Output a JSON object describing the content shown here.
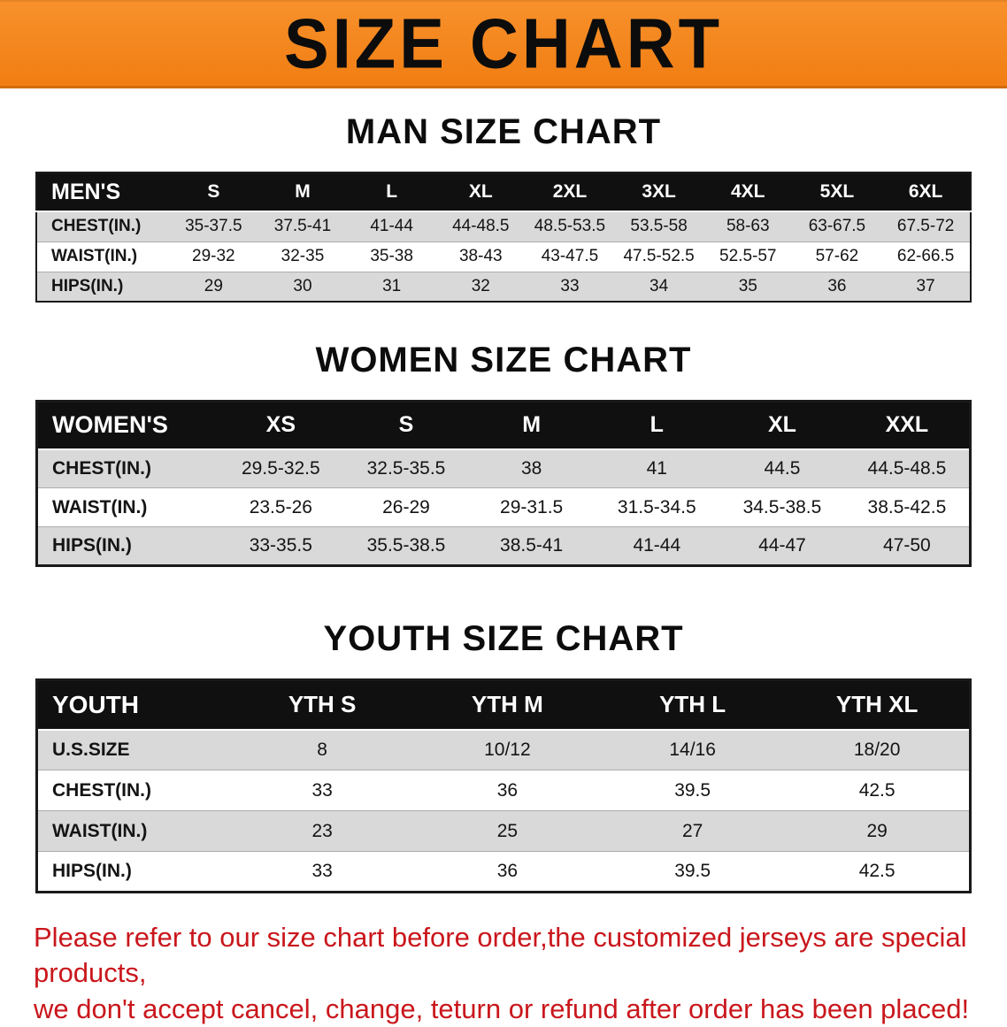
{
  "banner": {
    "title": "SIZE CHART"
  },
  "colors": {
    "banner_orange": "#F6861E",
    "table_header_bg": "#101010",
    "row_stripe": "#D9D9D9",
    "disclaimer_red": "#C9171C"
  },
  "men": {
    "heading": "MAN SIZE CHART",
    "table": {
      "header": [
        "MEN'S",
        "S",
        "M",
        "L",
        "XL",
        "2XL",
        "3XL",
        "4XL",
        "5XL",
        "6XL"
      ],
      "rows": [
        [
          "CHEST(IN.)",
          "35-37.5",
          "37.5-41",
          "41-44",
          "44-48.5",
          "48.5-53.5",
          "53.5-58",
          "58-63",
          "63-67.5",
          "67.5-72"
        ],
        [
          "WAIST(IN.)",
          "29-32",
          "32-35",
          "35-38",
          "38-43",
          "43-47.5",
          "47.5-52.5",
          "52.5-57",
          "57-62",
          "62-66.5"
        ],
        [
          "HIPS(IN.)",
          "29",
          "30",
          "31",
          "32",
          "33",
          "34",
          "35",
          "36",
          "37"
        ]
      ]
    }
  },
  "women": {
    "heading": "WOMEN SIZE CHART",
    "table": {
      "header": [
        "WOMEN'S",
        "XS",
        "S",
        "M",
        "L",
        "XL",
        "XXL"
      ],
      "rows": [
        [
          "CHEST(IN.)",
          "29.5-32.5",
          "32.5-35.5",
          "38",
          "41",
          "44.5",
          "44.5-48.5"
        ],
        [
          "WAIST(IN.)",
          "23.5-26",
          "26-29",
          "29-31.5",
          "31.5-34.5",
          "34.5-38.5",
          "38.5-42.5"
        ],
        [
          "HIPS(IN.)",
          "33-35.5",
          "35.5-38.5",
          "38.5-41",
          "41-44",
          "44-47",
          "47-50"
        ]
      ]
    }
  },
  "youth": {
    "heading": "YOUTH SIZE CHART",
    "table": {
      "header": [
        "YOUTH",
        "YTH S",
        "YTH M",
        "YTH L",
        "YTH XL"
      ],
      "rows": [
        [
          "U.S.SIZE",
          "8",
          "10/12",
          "14/16",
          "18/20"
        ],
        [
          "CHEST(IN.)",
          "33",
          "36",
          "39.5",
          "42.5"
        ],
        [
          "WAIST(IN.)",
          "23",
          "25",
          "27",
          "29"
        ],
        [
          "HIPS(IN.)",
          "33",
          "36",
          "39.5",
          "42.5"
        ]
      ]
    }
  },
  "disclaimer": {
    "line1": "Please refer to our size chart before order,the customized jerseys are special products,",
    "line2": "we don't accept cancel, change, teturn or refund after order has been placed!"
  }
}
